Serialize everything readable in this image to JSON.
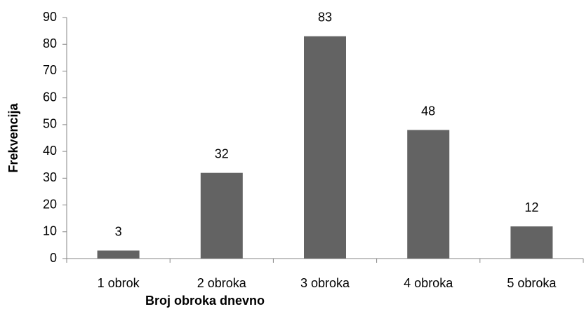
{
  "chart_data": {
    "type": "bar",
    "categories": [
      "1 obrok",
      "2 obroka",
      "3 obroka",
      "4 obroka",
      "5 obroka"
    ],
    "values": [
      3,
      32,
      83,
      48,
      12
    ],
    "color": "#636363",
    "x_label": "Broj obroka dnevno",
    "y_label": "Frekvencija",
    "ylim": [
      0,
      90
    ],
    "yticks": [
      0,
      10,
      20,
      30,
      40,
      50,
      60,
      70,
      80,
      90
    ],
    "grid": false
  }
}
